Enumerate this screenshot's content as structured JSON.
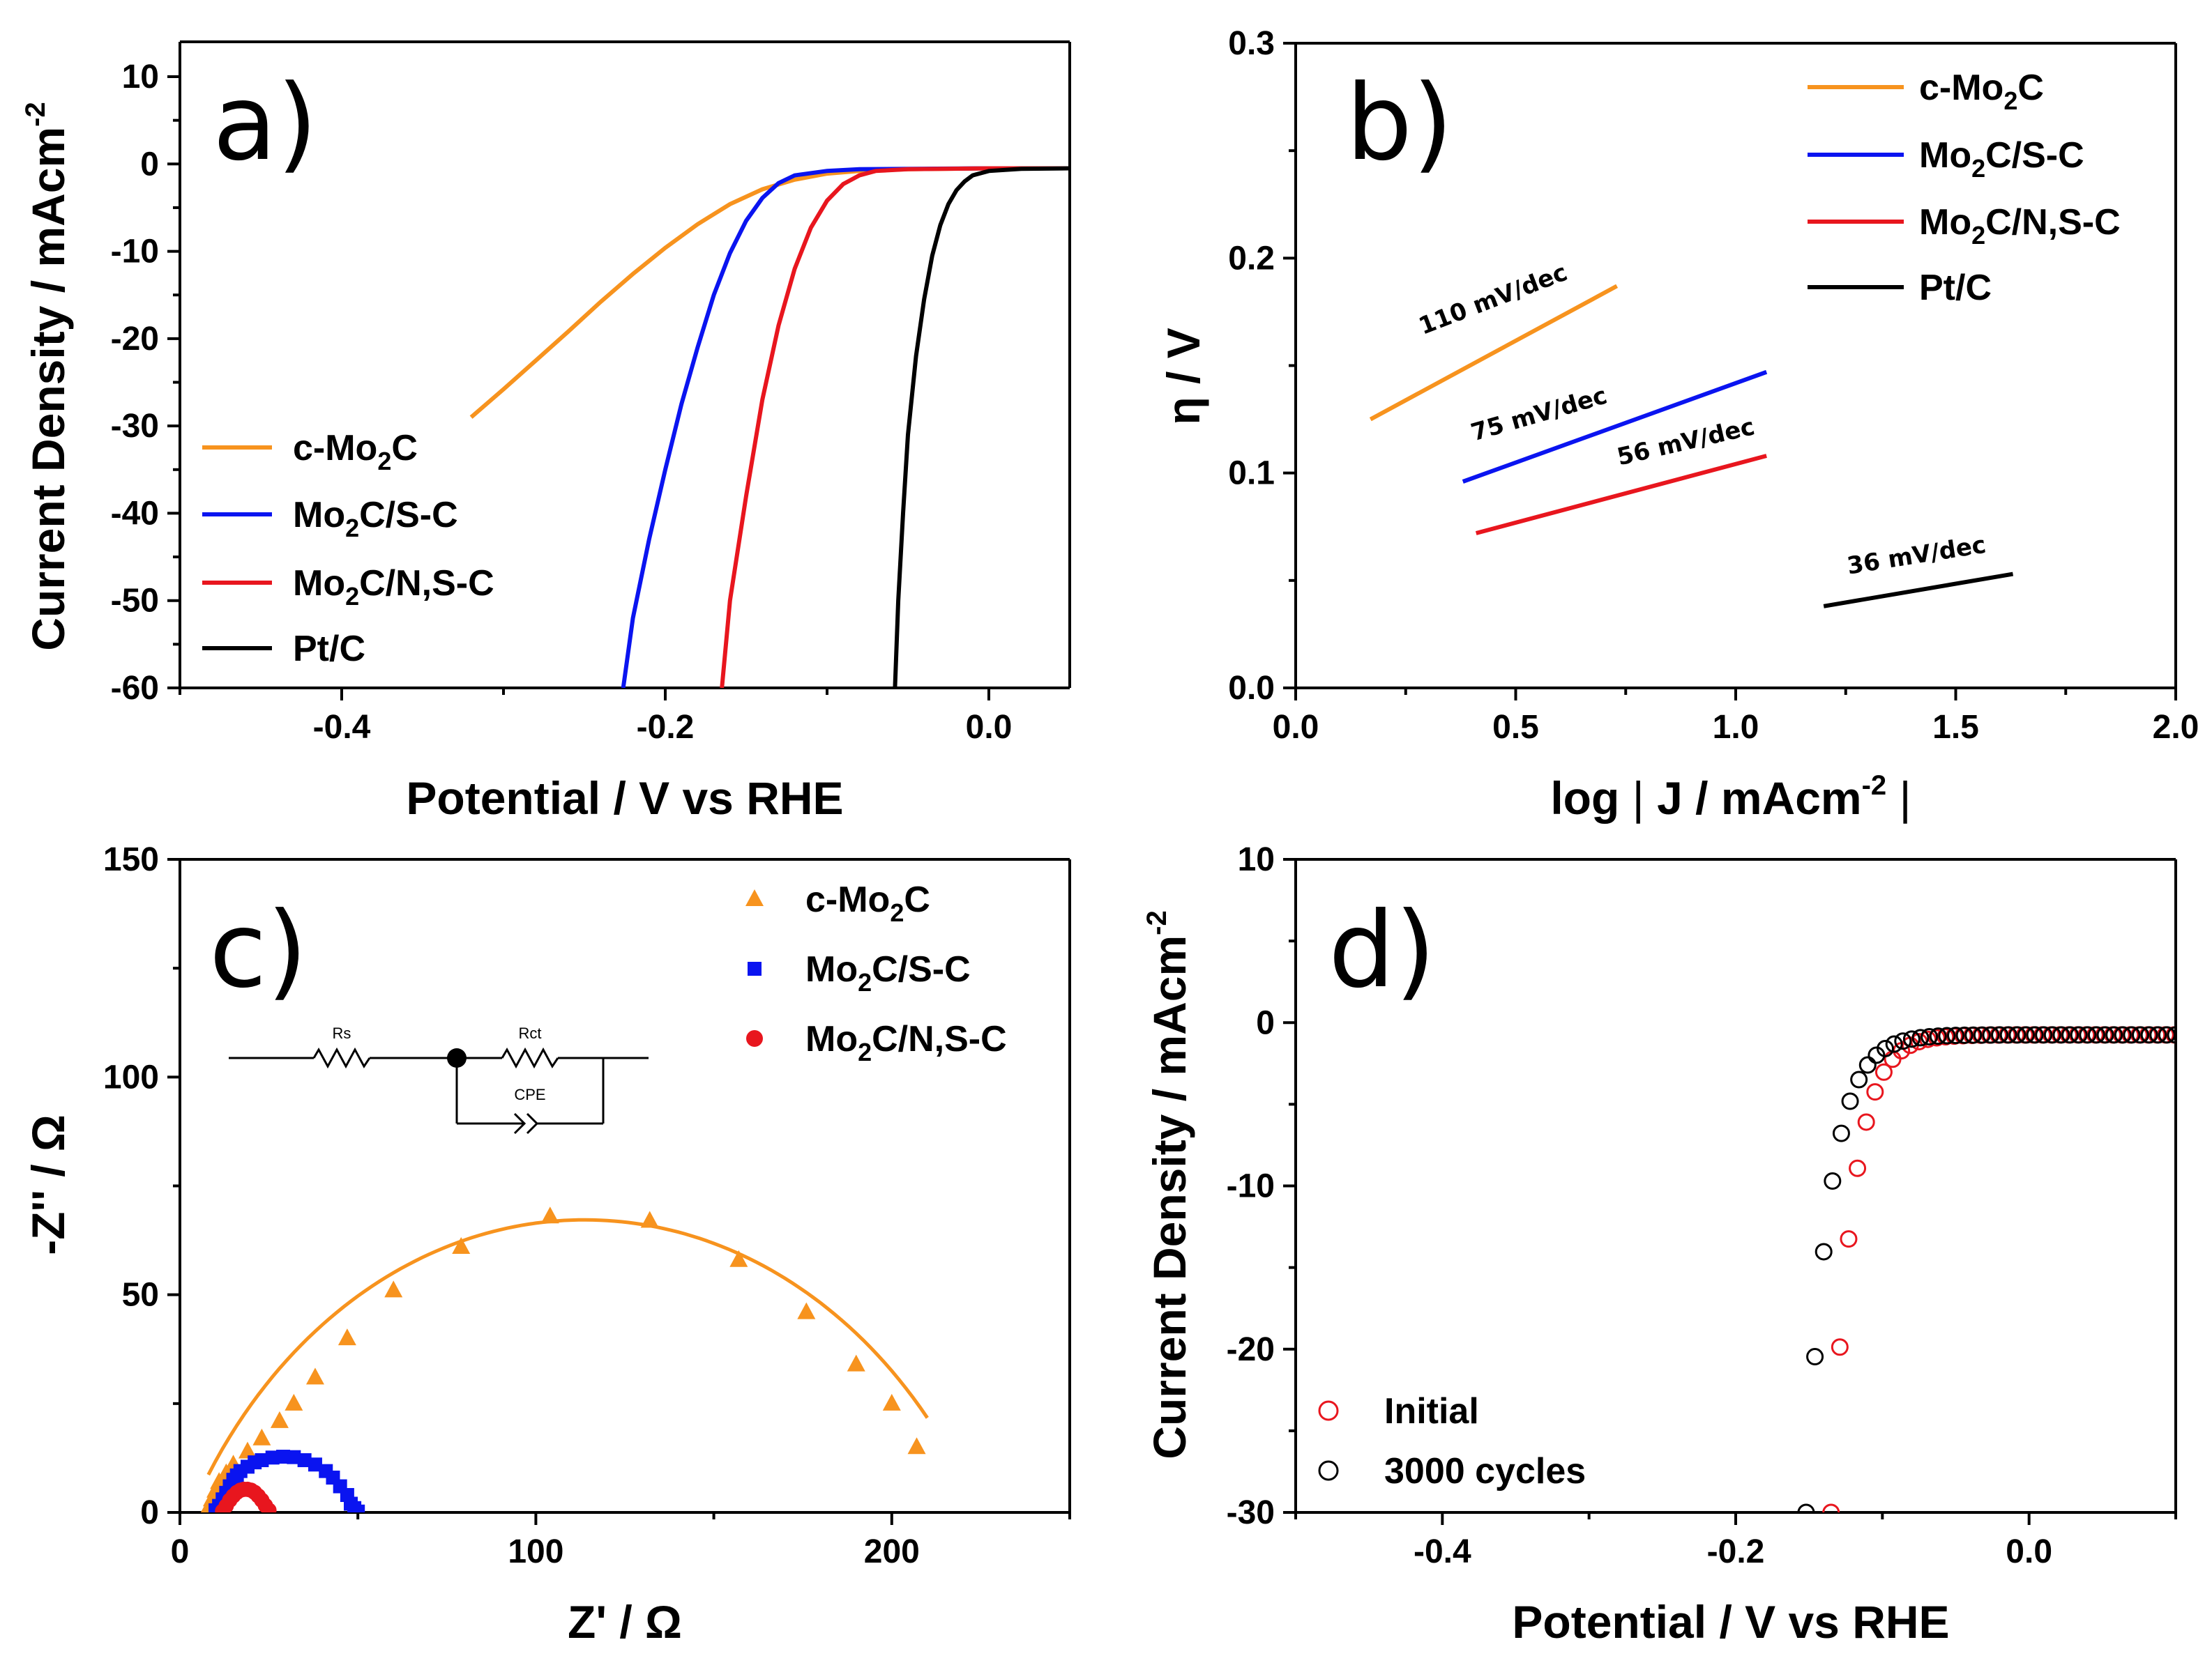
{
  "figure": {
    "panel_labels": [
      "a)",
      "b)",
      "c)",
      "d)"
    ]
  },
  "chart_data": [
    {
      "panel": "a)",
      "type": "line",
      "xlabel": "Potential / V vs RHE",
      "ylabel": "Current Density / mAcm",
      "ylabel_sup": "-2",
      "xlim": [
        -0.5,
        0.05
      ],
      "ylim": [
        -60,
        15
      ],
      "xticks": [
        -0.4,
        -0.2,
        0.0
      ],
      "xtick_labels": [
        "-0.4",
        "-0.2",
        "0.0"
      ],
      "yticks": [
        10,
        0,
        -10,
        -20,
        -30,
        -40,
        -50,
        -60
      ],
      "ytick_labels": [
        "10",
        "0",
        "-10",
        "-20",
        "-30",
        "-40",
        "-50",
        "-60"
      ],
      "legend_position": "bottom-left",
      "series": [
        {
          "name": "c-Mo2C",
          "label_main": "c-Mo",
          "label_sub": "2",
          "label_rest": "C",
          "color": "#f7931e",
          "points": [
            [
              -0.32,
              -29
            ],
            [
              -0.3,
              -25.8
            ],
            [
              -0.28,
              -22.5
            ],
            [
              -0.26,
              -19.2
            ],
            [
              -0.24,
              -15.8
            ],
            [
              -0.22,
              -12.6
            ],
            [
              -0.2,
              -9.6
            ],
            [
              -0.18,
              -6.9
            ],
            [
              -0.16,
              -4.6
            ],
            [
              -0.14,
              -2.9
            ],
            [
              -0.12,
              -1.8
            ],
            [
              -0.1,
              -1.1
            ],
            [
              -0.08,
              -0.8
            ],
            [
              -0.05,
              -0.6
            ],
            [
              0.0,
              -0.5
            ],
            [
              0.05,
              -0.5
            ]
          ]
        },
        {
          "name": "Mo2C/S-C",
          "label_main": "Mo",
          "label_sub": "2",
          "label_rest": "C/S-C",
          "color": "#0a14f0",
          "points": [
            [
              -0.226,
              -60
            ],
            [
              -0.22,
              -52
            ],
            [
              -0.21,
              -43
            ],
            [
              -0.2,
              -35
            ],
            [
              -0.19,
              -27.5
            ],
            [
              -0.18,
              -21
            ],
            [
              -0.17,
              -15
            ],
            [
              -0.16,
              -10.2
            ],
            [
              -0.15,
              -6.5
            ],
            [
              -0.14,
              -3.9
            ],
            [
              -0.13,
              -2.2
            ],
            [
              -0.12,
              -1.3
            ],
            [
              -0.1,
              -0.8
            ],
            [
              -0.08,
              -0.6
            ],
            [
              0.0,
              -0.5
            ],
            [
              0.05,
              -0.5
            ]
          ]
        },
        {
          "name": "Mo2C/N,S-C",
          "label_main": "Mo",
          "label_sub": "2",
          "label_rest": "C/N,S-C",
          "color": "#e8161e",
          "points": [
            [
              -0.165,
              -60
            ],
            [
              -0.16,
              -50
            ],
            [
              -0.15,
              -38
            ],
            [
              -0.14,
              -27
            ],
            [
              -0.13,
              -18.5
            ],
            [
              -0.12,
              -12
            ],
            [
              -0.11,
              -7.3
            ],
            [
              -0.1,
              -4.2
            ],
            [
              -0.09,
              -2.3
            ],
            [
              -0.08,
              -1.3
            ],
            [
              -0.07,
              -0.8
            ],
            [
              -0.05,
              -0.6
            ],
            [
              0.0,
              -0.5
            ],
            [
              0.05,
              -0.5
            ]
          ]
        },
        {
          "name": "Pt/C",
          "label_main": "Pt/C",
          "label_sub": "",
          "label_rest": "",
          "color": "#000000",
          "points": [
            [
              -0.058,
              -60
            ],
            [
              -0.056,
              -50
            ],
            [
              -0.053,
              -40
            ],
            [
              -0.05,
              -31
            ],
            [
              -0.045,
              -22
            ],
            [
              -0.04,
              -15.5
            ],
            [
              -0.035,
              -10.5
            ],
            [
              -0.03,
              -7
            ],
            [
              -0.025,
              -4.6
            ],
            [
              -0.02,
              -3
            ],
            [
              -0.015,
              -2
            ],
            [
              -0.01,
              -1.3
            ],
            [
              0.0,
              -0.8
            ],
            [
              0.02,
              -0.55
            ],
            [
              0.05,
              -0.5
            ]
          ]
        }
      ]
    },
    {
      "panel": "b)",
      "type": "line",
      "xlabel": "log",
      "xlabel_bar_left": "|",
      "xlabel_inner": "J / mAcm",
      "xlabel_sup": "-2",
      "xlabel_bar_right": "|",
      "ylabel": "η / V",
      "xlim": [
        0.0,
        2.0
      ],
      "ylim": [
        0.0,
        0.3
      ],
      "xticks": [
        0.0,
        0.5,
        1.0,
        1.5,
        2.0
      ],
      "xtick_labels": [
        "0.0",
        "0.5",
        "1.0",
        "1.5",
        "2.0"
      ],
      "yticks": [
        0.0,
        0.1,
        0.2,
        0.3
      ],
      "ytick_labels": [
        "0.0",
        "0.1",
        "0.2",
        "0.3"
      ],
      "legend_position": "top-right",
      "series": [
        {
          "name": "c-Mo2C",
          "label_main": "c-Mo",
          "label_sub": "2",
          "label_rest": "C",
          "color": "#f7931e",
          "x": [
            0.17,
            0.73
          ],
          "y": [
            0.125,
            0.187
          ],
          "slope_label": "110 mV/dec"
        },
        {
          "name": "Mo2C/S-C",
          "label_main": "Mo",
          "label_sub": "2",
          "label_rest": "C/S-C",
          "color": "#0a14f0",
          "x": [
            0.38,
            1.07
          ],
          "y": [
            0.096,
            0.147
          ],
          "slope_label": "75 mV/dec"
        },
        {
          "name": "Mo2C/N,S-C",
          "label_main": "Mo",
          "label_sub": "2",
          "label_rest": "C/N,S-C",
          "color": "#e8161e",
          "x": [
            0.41,
            1.07
          ],
          "y": [
            0.072,
            0.108
          ],
          "slope_label": "56 mV/dec"
        },
        {
          "name": "Pt/C",
          "label_main": "Pt/C",
          "label_sub": "",
          "label_rest": "",
          "color": "#000000",
          "x": [
            1.2,
            1.63
          ],
          "y": [
            0.038,
            0.053
          ],
          "slope_label": "36 mV/dec"
        }
      ]
    },
    {
      "panel": "c)",
      "type": "scatter",
      "xlabel": "Z' / Ω",
      "ylabel": "-Z'' / Ω",
      "xlim": [
        0,
        250
      ],
      "ylim": [
        0,
        150
      ],
      "xticks": [
        0,
        100,
        200
      ],
      "xtick_labels": [
        "0",
        "100",
        "200"
      ],
      "yticks": [
        0,
        50,
        100,
        150
      ],
      "ytick_labels": [
        "0",
        "50",
        "100",
        "150"
      ],
      "legend_position": "top-right",
      "circuit": {
        "rs_label": "Rs",
        "rct_label": "Rct",
        "cpe_label": "CPE"
      },
      "series": [
        {
          "name": "c-Mo2C",
          "label_main": "c-Mo",
          "label_sub": "2",
          "label_rest": "C",
          "color": "#f7931e",
          "marker": "triangle",
          "points": [
            [
              8,
              1
            ],
            [
              9,
              3
            ],
            [
              10,
              5
            ],
            [
              11,
              7
            ],
            [
              13,
              9
            ],
            [
              15,
              11
            ],
            [
              19,
              14
            ],
            [
              23,
              17
            ],
            [
              28,
              21
            ],
            [
              32,
              25
            ],
            [
              38,
              31
            ],
            [
              47,
              40
            ],
            [
              60,
              51
            ],
            [
              79,
              61
            ],
            [
              104,
              68
            ],
            [
              132,
              67
            ],
            [
              157,
              58
            ],
            [
              176,
              46
            ],
            [
              190,
              34
            ],
            [
              200,
              25
            ],
            [
              207,
              15
            ]
          ],
          "fit": {
            "center_x": 113.7,
            "center_y": -57.5,
            "radius": 124.7,
            "x_start": 8,
            "x_end": 210
          }
        },
        {
          "name": "Mo2C/S-C",
          "label_main": "Mo",
          "label_sub": "2",
          "label_rest": "C/S-C",
          "color": "#0a14f0",
          "marker": "square",
          "points": [
            [
              10,
              0.5
            ],
            [
              11,
              1.5
            ],
            [
              12,
              3
            ],
            [
              13,
              4.5
            ],
            [
              14,
              6
            ],
            [
              15,
              7.5
            ],
            [
              16,
              8.5
            ],
            [
              17,
              9.5
            ],
            [
              19,
              10.5
            ],
            [
              21,
              11.5
            ],
            [
              23,
              12
            ],
            [
              26,
              12.6
            ],
            [
              29,
              12.8
            ],
            [
              32,
              12.7
            ],
            [
              35,
              12
            ],
            [
              38,
              11
            ],
            [
              41,
              9.5
            ],
            [
              43,
              8
            ],
            [
              45,
              6
            ],
            [
              47,
              4
            ],
            [
              48,
              2
            ],
            [
              49,
              1
            ],
            [
              50,
              0.2
            ]
          ]
        },
        {
          "name": "Mo2C/N,S-C",
          "label_main": "Mo",
          "label_sub": "2",
          "label_rest": "C/N,S-C",
          "color": "#e8161e",
          "marker": "circle",
          "points": [
            [
              12,
              0.3
            ],
            [
              13,
              1.5
            ],
            [
              14,
              2.8
            ],
            [
              15,
              3.8
            ],
            [
              16,
              4.6
            ],
            [
              17,
              5.1
            ],
            [
              18,
              5.3
            ],
            [
              19,
              5.3
            ],
            [
              20,
              5.1
            ],
            [
              21,
              4.6
            ],
            [
              22,
              3.8
            ],
            [
              23,
              2.8
            ],
            [
              24,
              1.6
            ],
            [
              25,
              0.5
            ]
          ]
        }
      ]
    },
    {
      "panel": "d)",
      "type": "scatter",
      "xlabel": "Potential / V vs RHE",
      "ylabel": "Current Density / mAcm",
      "ylabel_sup": "-2",
      "xlim": [
        -0.5,
        0.1
      ],
      "ylim": [
        -30,
        10
      ],
      "xticks": [
        -0.4,
        -0.2,
        0.0
      ],
      "xtick_labels": [
        "-0.4",
        "-0.2",
        "0.0"
      ],
      "yticks": [
        10,
        0,
        -10,
        -20,
        -30
      ],
      "ytick_labels": [
        "10",
        "0",
        "-10",
        "-20",
        "-30"
      ],
      "legend_position": "bottom-left",
      "series": [
        {
          "name": "Initial",
          "color": "#e8161e",
          "marker": "open-circle",
          "onset": -0.07,
          "v30": -0.135
        },
        {
          "name": "3000 cycles",
          "color": "#000000",
          "marker": "open-circle",
          "onset": -0.082,
          "v30": -0.152
        }
      ]
    }
  ]
}
